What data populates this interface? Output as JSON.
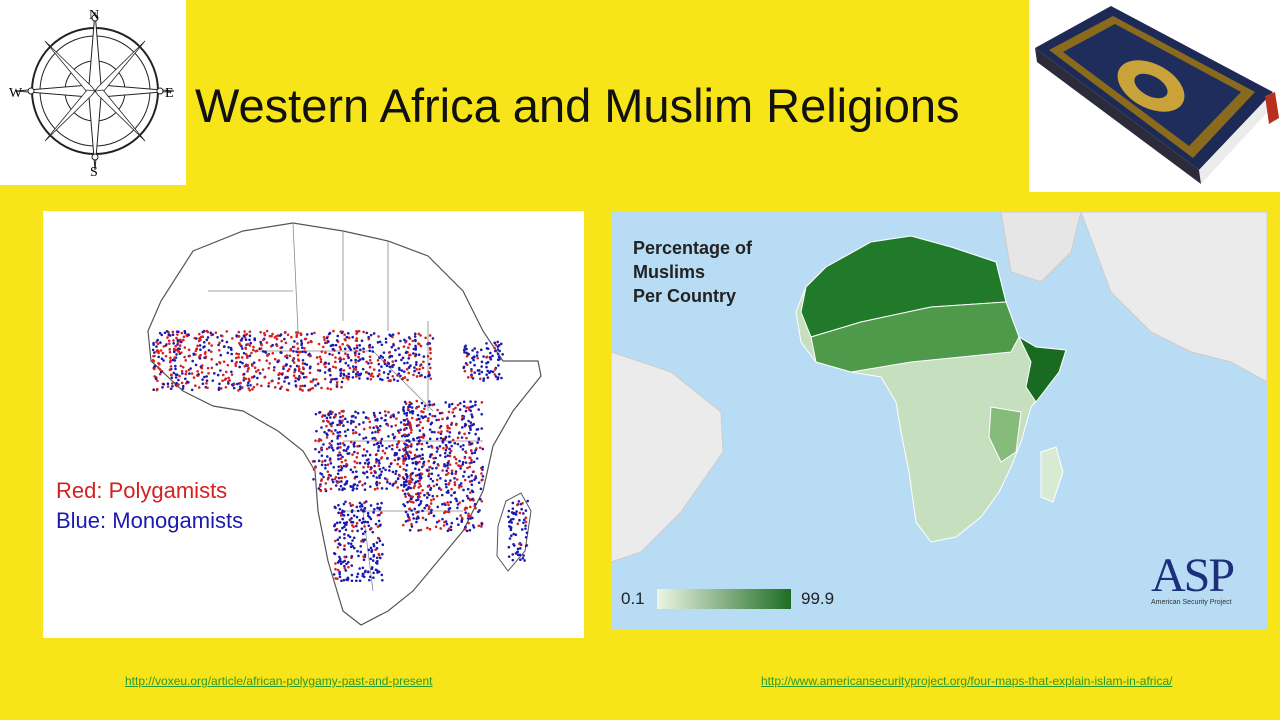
{
  "slide": {
    "title": "Western Africa and Muslim Religions"
  },
  "compass": {
    "icon": "compass-rose-icon",
    "n": "N",
    "s": "S",
    "e": "E",
    "w": "W"
  },
  "book": {
    "icon": "quran-book-icon"
  },
  "left_map": {
    "legend_red": "Red: Polygamists",
    "legend_blue": "Blue: Monogamists",
    "colors": {
      "red": "#d42020",
      "blue": "#1a1ab0"
    }
  },
  "right_map": {
    "title_lines": [
      "Percentage of",
      "Muslims",
      "Per Country"
    ],
    "scale_min": "0.1",
    "scale_max": "99.9",
    "scale_colors": {
      "low": "#eef5e6",
      "high": "#1e6d24"
    },
    "logo_text": "ASP",
    "logo_sub": "American Security Project"
  },
  "links": {
    "left": "http://voxeu.org/article/african-polygamy-past-and-present",
    "right": "http://www.americansecurityproject.org/four-maps-that-explain-islam-in-africa/"
  }
}
